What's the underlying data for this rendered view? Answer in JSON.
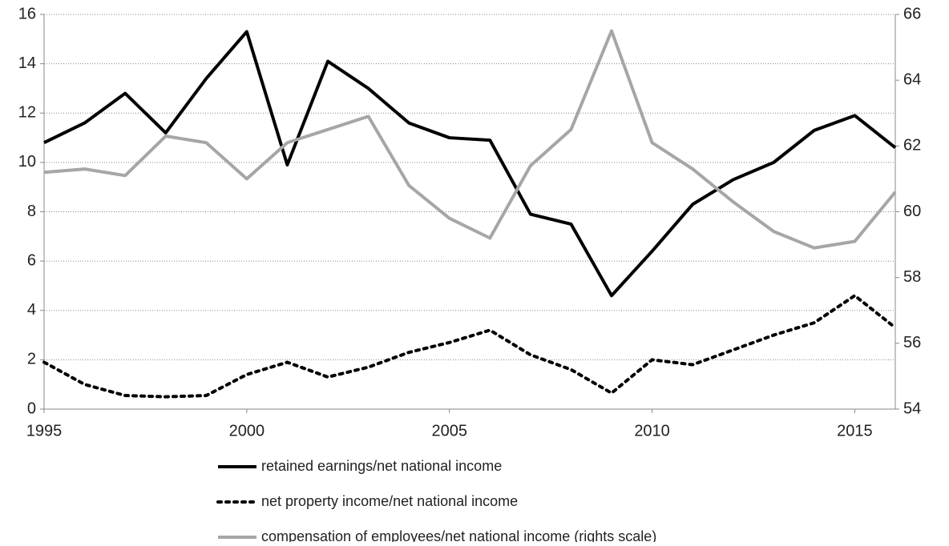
{
  "chart_data": {
    "type": "line",
    "x": [
      1995,
      1996,
      1997,
      1998,
      1999,
      2000,
      2001,
      2002,
      2003,
      2004,
      2005,
      2006,
      2007,
      2008,
      2009,
      2010,
      2011,
      2012,
      2013,
      2014,
      2015,
      2016
    ],
    "xlim": [
      1995,
      2016
    ],
    "xticks": [
      1995,
      2000,
      2005,
      2010,
      2015
    ],
    "ylim": [
      0,
      16
    ],
    "yticks": [
      0,
      2,
      4,
      6,
      8,
      10,
      12,
      14,
      16
    ],
    "y2lim": [
      54,
      66
    ],
    "y2ticks": [
      54,
      56,
      58,
      60,
      62,
      64,
      66
    ],
    "grid": true,
    "series": [
      {
        "name": "retained earnings/net national income",
        "color": "#000000",
        "style": "solid",
        "values": [
          10.8,
          11.6,
          12.8,
          11.2,
          13.4,
          15.3,
          9.9,
          14.1,
          13.0,
          11.6,
          11.0,
          10.9,
          7.9,
          7.5,
          4.6,
          6.4,
          8.3,
          9.3,
          10.0,
          11.3,
          11.9,
          10.6
        ]
      },
      {
        "name": "net property income/net national income",
        "color": "#000000",
        "style": "dotted",
        "values": [
          1.9,
          1.0,
          0.55,
          0.5,
          0.55,
          1.4,
          1.9,
          1.3,
          1.7,
          2.3,
          2.7,
          3.2,
          2.2,
          1.6,
          0.65,
          2.0,
          1.8,
          2.4,
          3.0,
          3.5,
          4.6,
          3.3
        ]
      },
      {
        "name": "compensation of employees/net national income (rights scale)",
        "color": "#a6a6a6",
        "style": "solid",
        "axis": "y2",
        "values": [
          61.2,
          61.3,
          61.1,
          62.3,
          62.1,
          61.0,
          62.1,
          62.5,
          62.9,
          60.8,
          59.8,
          59.2,
          61.4,
          62.5,
          65.5,
          62.1,
          61.3,
          60.3,
          59.4,
          58.9,
          59.1,
          60.6
        ]
      }
    ]
  }
}
